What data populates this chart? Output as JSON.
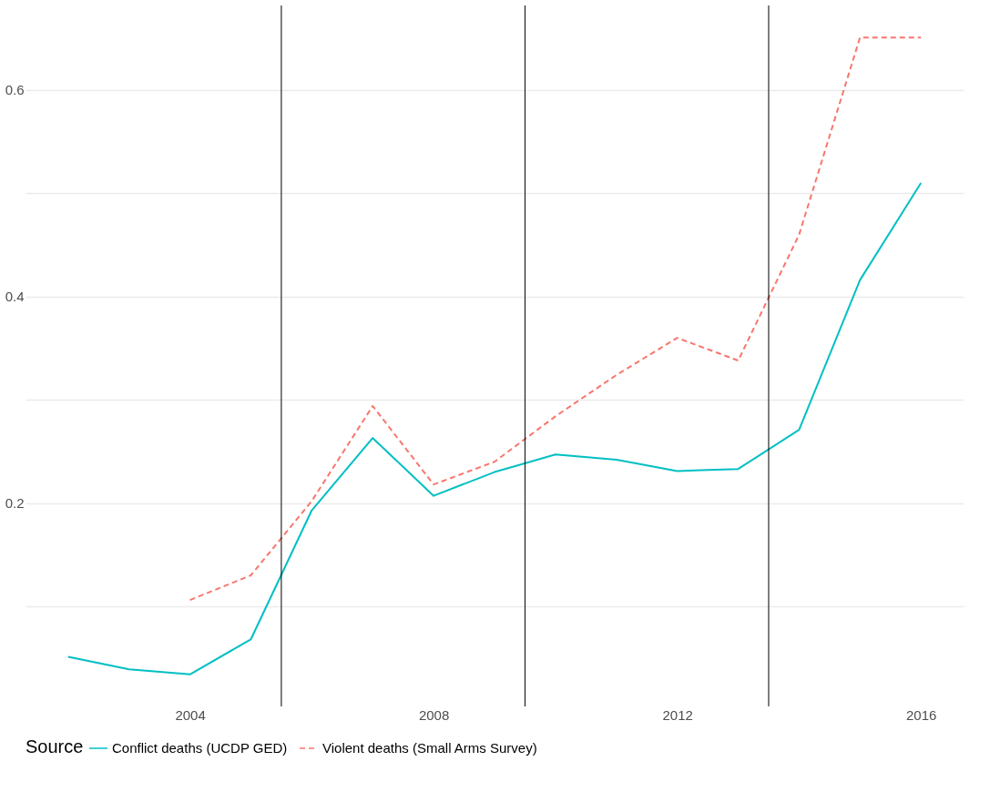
{
  "chart_data": {
    "type": "line",
    "x": [
      2002,
      2003,
      2004,
      2005,
      2006,
      2007,
      2008,
      2009,
      2010,
      2011,
      2012,
      2013,
      2014,
      2015,
      2016
    ],
    "series": [
      {
        "name": "Conflict deaths (UCDP GED)",
        "color": "#00bfc4",
        "line_style": "solid",
        "values": [
          0.051,
          0.039,
          0.034,
          0.068,
          0.193,
          0.263,
          0.207,
          0.23,
          0.247,
          0.242,
          0.231,
          0.233,
          0.271,
          0.416,
          0.51
        ]
      },
      {
        "name": "Violent deaths (Small Arms Survey)",
        "color": "#f8766d",
        "line_style": "dashed",
        "values": [
          null,
          null,
          0.106,
          0.13,
          0.202,
          0.294,
          0.218,
          0.24,
          0.284,
          0.324,
          0.36,
          0.338,
          0.46,
          0.651,
          0.651
        ]
      }
    ],
    "legend_title": "Source",
    "legend": "bottom",
    "grid": "y",
    "marker": "none",
    "xlim": [
      2001.3,
      2016.7
    ],
    "xticks": [
      2004,
      2008,
      2012,
      2016
    ],
    "ylim": [
      0.003,
      0.682
    ],
    "yticks": [
      {
        "value": 0.1,
        "label": null
      },
      0.2,
      {
        "value": 0.3,
        "label": null
      },
      0.4,
      {
        "value": 0.5,
        "label": null
      },
      0.6
    ],
    "ref_lines": [
      {
        "axis": "x",
        "value": 2005.5,
        "color": "#000000"
      },
      {
        "axis": "x",
        "value": 2009.5,
        "color": "#000000"
      },
      {
        "axis": "x",
        "value": 2013.5,
        "color": "#000000"
      }
    ]
  }
}
